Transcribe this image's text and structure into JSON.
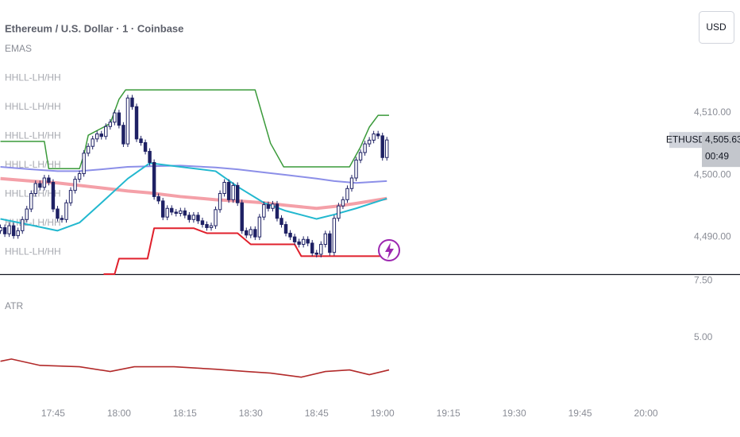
{
  "currency": "USD",
  "symbol": "ETHUSD",
  "countdown": "00:49",
  "chart_data": [
    {
      "type": "candlestick",
      "title": "Ethereum / U.S. Dollar · 1 · Coinbase",
      "legend_labels": [
        "EMAS",
        "HHLL-LH/HH",
        "HHLL-LH/HH",
        "HHLL-LH/HH",
        "HHLL-LH/HH",
        "HHLL-LH/HH",
        "HHLL-LH/HH",
        "HHLL-LH/HH"
      ],
      "last_price": {
        "value": 4505.63,
        "label": "4,505.63"
      },
      "up_color": "#ffffff",
      "down_color": "#1e2164",
      "edge_color": "#1e2164",
      "xlim": [
        1052.9,
        1208.4
      ],
      "xticks": [
        {
          "value": 1065,
          "label": "17:45"
        },
        {
          "value": 1080,
          "label": "18:00"
        },
        {
          "value": 1095,
          "label": "18:15"
        },
        {
          "value": 1110,
          "label": "18:30"
        },
        {
          "value": 1125,
          "label": "18:45"
        },
        {
          "value": 1140,
          "label": "19:00"
        },
        {
          "value": 1155,
          "label": "19:15"
        },
        {
          "value": 1170,
          "label": "19:30"
        },
        {
          "value": 1185,
          "label": "19:45"
        },
        {
          "value": 1200,
          "label": "20:00"
        }
      ],
      "ylim": [
        4484,
        4528.2
      ],
      "yticks": [
        {
          "value": 4490,
          "label": "4,490.00"
        },
        {
          "value": 4500,
          "label": "4,500.00"
        },
        {
          "value": 4510,
          "label": "4,510.00"
        }
      ],
      "x": [
        1053,
        1054,
        1055,
        1056,
        1057,
        1058,
        1059,
        1060,
        1061,
        1062,
        1063,
        1064,
        1065,
        1066,
        1067,
        1068,
        1069,
        1070,
        1071,
        1072,
        1073,
        1074,
        1075,
        1076,
        1077,
        1078,
        1079,
        1080,
        1081,
        1082,
        1083,
        1084,
        1085,
        1086,
        1087,
        1088,
        1089,
        1090,
        1091,
        1092,
        1093,
        1094,
        1095,
        1096,
        1097,
        1098,
        1099,
        1100,
        1101,
        1102,
        1103,
        1104,
        1105,
        1106,
        1107,
        1108,
        1109,
        1110,
        1111,
        1112,
        1113,
        1114,
        1115,
        1116,
        1117,
        1118,
        1119,
        1120,
        1121,
        1122,
        1123,
        1124,
        1125,
        1126,
        1127,
        1128,
        1129,
        1130,
        1131,
        1132,
        1133,
        1134,
        1135,
        1136,
        1137,
        1138,
        1139,
        1140,
        1141
      ],
      "open": [
        4491.0,
        4491.5,
        4490.5,
        4491.8,
        4490.2,
        4491.0,
        4492.8,
        4494.5,
        4497.0,
        4498.6,
        4498.0,
        4499.5,
        4498.8,
        4494.5,
        4493.0,
        4492.8,
        4495.5,
        4497.5,
        4499.3,
        4500.2,
        4503.5,
        4504.6,
        4505.8,
        4506.6,
        4506.2,
        4507.8,
        4508.5,
        4510.0,
        4508.0,
        4505.0,
        4512.4,
        4511.0,
        4505.8,
        4505.2,
        4503.8,
        4502.0,
        4496.5,
        4495.8,
        4493.2,
        4494.6,
        4494.0,
        4493.8,
        4494.2,
        4493.5,
        4492.8,
        4493.5,
        4492.6,
        4492.0,
        4491.5,
        4491.8,
        4494.4,
        4497.0,
        4498.8,
        4496.0,
        4498.3,
        4495.5,
        4491.0,
        4490.3,
        4491.2,
        4490.0,
        4493.2,
        4495.2,
        4494.6,
        4495.3,
        4493.0,
        4492.0,
        4490.6,
        4490.0,
        4489.2,
        4488.8,
        4489.6,
        4489.0,
        4487.4,
        4487.2,
        4488.8,
        4490.5,
        4487.5,
        4493.0,
        4495.0,
        4496.0,
        4497.8,
        4499.5,
        4502.4,
        4503.6,
        4505.0,
        4505.6,
        4506.6,
        4506.3,
        4502.8
      ],
      "high": [
        4492.0,
        4492.0,
        4492.3,
        4492.3,
        4491.5,
        4493.3,
        4495.0,
        4497.5,
        4499.1,
        4499.1,
        4500.0,
        4500.0,
        4499.3,
        4495.0,
        4493.5,
        4496.0,
        4498.0,
        4499.8,
        4500.7,
        4504.0,
        4505.1,
        4506.3,
        4507.1,
        4507.1,
        4508.3,
        4509.0,
        4510.5,
        4510.5,
        4508.5,
        4512.9,
        4512.9,
        4511.5,
        4506.3,
        4505.7,
        4504.3,
        4502.5,
        4497.0,
        4496.3,
        4495.1,
        4495.1,
        4494.5,
        4494.7,
        4494.7,
        4494.0,
        4494.0,
        4494.0,
        4493.1,
        4492.5,
        4492.3,
        4494.9,
        4497.5,
        4499.3,
        4499.3,
        4498.8,
        4498.8,
        4496.0,
        4491.5,
        4491.7,
        4491.7,
        4493.7,
        4495.7,
        4495.7,
        4495.8,
        4495.8,
        4493.5,
        4492.5,
        4491.1,
        4490.5,
        4489.7,
        4490.1,
        4490.1,
        4489.5,
        4487.9,
        4489.3,
        4491.0,
        4491.0,
        4493.5,
        4495.5,
        4496.5,
        4498.3,
        4500.0,
        4502.9,
        4504.1,
        4505.5,
        4506.1,
        4507.1,
        4507.1,
        4506.8,
        4506.13
      ],
      "low": [
        4490.5,
        4490.0,
        4490.0,
        4489.7,
        4489.7,
        4490.5,
        4492.3,
        4494.0,
        4496.5,
        4497.5,
        4497.5,
        4498.3,
        4494.0,
        4492.5,
        4492.3,
        4492.3,
        4495.0,
        4497.0,
        4498.8,
        4499.7,
        4503.0,
        4504.1,
        4505.3,
        4505.7,
        4505.7,
        4507.3,
        4508.0,
        4507.5,
        4504.5,
        4504.5,
        4510.5,
        4505.3,
        4504.7,
        4503.3,
        4501.5,
        4496.0,
        4495.3,
        4492.7,
        4492.7,
        4493.5,
        4493.3,
        4493.3,
        4493.0,
        4492.3,
        4492.3,
        4492.1,
        4491.5,
        4491.0,
        4491.0,
        4491.3,
        4493.9,
        4496.5,
        4495.5,
        4495.5,
        4495.0,
        4490.5,
        4489.8,
        4489.8,
        4489.5,
        4489.5,
        4492.7,
        4494.1,
        4494.1,
        4492.5,
        4491.5,
        4490.1,
        4489.5,
        4488.7,
        4488.3,
        4488.3,
        4488.5,
        4486.9,
        4486.7,
        4486.7,
        4488.3,
        4487.0,
        4487.0,
        4492.5,
        4494.5,
        4495.5,
        4497.3,
        4499.0,
        4501.9,
        4503.1,
        4504.5,
        4505.1,
        4505.8,
        4502.3,
        4502.3
      ],
      "close": [
        4491.5,
        4490.5,
        4491.8,
        4490.2,
        4491.0,
        4492.8,
        4494.5,
        4497.0,
        4498.6,
        4498.0,
        4499.5,
        4498.8,
        4494.5,
        4493.0,
        4492.8,
        4495.5,
        4497.5,
        4499.3,
        4500.2,
        4503.5,
        4504.6,
        4505.8,
        4506.6,
        4506.2,
        4507.8,
        4508.5,
        4510.0,
        4508.0,
        4505.0,
        4512.4,
        4511.0,
        4505.8,
        4505.2,
        4503.8,
        4502.0,
        4496.5,
        4495.8,
        4493.2,
        4494.6,
        4494.0,
        4493.8,
        4494.2,
        4493.5,
        4492.8,
        4493.5,
        4492.6,
        4492.0,
        4491.5,
        4491.8,
        4494.4,
        4497.0,
        4498.8,
        4496.0,
        4498.3,
        4495.5,
        4491.0,
        4490.3,
        4491.2,
        4490.0,
        4493.2,
        4495.2,
        4494.6,
        4495.3,
        4493.0,
        4492.0,
        4490.6,
        4490.0,
        4489.2,
        4488.8,
        4489.6,
        4489.0,
        4487.4,
        4487.2,
        4488.8,
        4490.5,
        4487.5,
        4493.0,
        4495.0,
        4496.0,
        4497.8,
        4499.5,
        4502.4,
        4503.6,
        4505.0,
        4505.6,
        4506.6,
        4506.3,
        4502.8,
        4505.63
      ],
      "overlays": [
        {
          "color": "#f4a0a8",
          "width": 4,
          "x": [
            1053,
            1060,
            1066,
            1071,
            1076,
            1082,
            1087,
            1094,
            1102,
            1107,
            1113,
            1118,
            1125,
            1129,
            1134,
            1141
          ],
          "values": [
            4499.4,
            4499.0,
            4498.7,
            4498.3,
            4497.9,
            4497.4,
            4497.1,
            4496.5,
            4496.0,
            4495.8,
            4495.5,
            4495.1,
            4494.6,
            4494.9,
            4495.4,
            4496.2
          ]
        },
        {
          "color": "#8c8fe8",
          "width": 2,
          "x": [
            1053,
            1060,
            1066,
            1071,
            1076,
            1082,
            1087,
            1094,
            1102,
            1107,
            1113,
            1118,
            1125,
            1129,
            1134,
            1141
          ],
          "values": [
            4501.3,
            4500.9,
            4500.6,
            4500.6,
            4500.9,
            4501.3,
            4501.4,
            4501.5,
            4501.2,
            4500.9,
            4500.4,
            4500.0,
            4499.4,
            4499.0,
            4498.7,
            4499.0
          ]
        },
        {
          "color": "#22b8cf",
          "width": 2,
          "x": [
            1053,
            1060,
            1066,
            1071,
            1076,
            1082,
            1087,
            1094,
            1102,
            1107,
            1113,
            1118,
            1125,
            1129,
            1134,
            1141
          ],
          "values": [
            4492.9,
            4491.9,
            4491.0,
            4492.3,
            4495.5,
            4499.4,
            4501.9,
            4501.3,
            4500.6,
            4498.1,
            4495.5,
            4494.2,
            4492.9,
            4493.6,
            4494.6,
            4496.2
          ]
        },
        {
          "color": "#3a9a3a",
          "width": 1.5,
          "x": [
            1053,
            1063,
            1064,
            1071,
            1072,
            1073,
            1076.5,
            1078,
            1080,
            1081.5,
            1111,
            1114.5,
            1117.5,
            1132.5,
            1135,
            1137,
            1139,
            1141.5
          ],
          "values": [
            4505.4,
            4505.4,
            4501.0,
            4501.0,
            4503.2,
            4506.4,
            4507.7,
            4508.3,
            4512.2,
            4513.7,
            4513.7,
            4505.1,
            4501.3,
            4501.3,
            4504.5,
            4507.7,
            4509.6,
            4509.6
          ]
        },
        {
          "color": "#e0202c",
          "width": 2,
          "x": [
            1076.5,
            1079,
            1080,
            1086.5,
            1088,
            1097,
            1100,
            1107,
            1110,
            1120,
            1121.5,
            1141.5
          ],
          "values": [
            4484.0,
            4484.0,
            4486.5,
            4486.5,
            4491.4,
            4491.4,
            4490.6,
            4490.6,
            4488.8,
            4488.8,
            4486.9,
            4486.9
          ]
        }
      ]
    },
    {
      "type": "line",
      "title": "ATR",
      "color": "#b22a2a",
      "ylim": [
        2.2,
        7.8
      ],
      "yticks": [
        {
          "value": 5,
          "label": "5.00"
        },
        {
          "value": 7.5,
          "label": "7.50"
        }
      ],
      "x": [
        1053,
        1055.5,
        1062,
        1071,
        1078,
        1083.5,
        1092.5,
        1102,
        1109,
        1114.5,
        1121.5,
        1127,
        1132.5,
        1137,
        1141.5
      ],
      "values": [
        3.96,
        4.06,
        3.78,
        3.72,
        3.51,
        3.72,
        3.72,
        3.61,
        3.51,
        3.44,
        3.26,
        3.51,
        3.58,
        3.37,
        3.58
      ]
    }
  ]
}
